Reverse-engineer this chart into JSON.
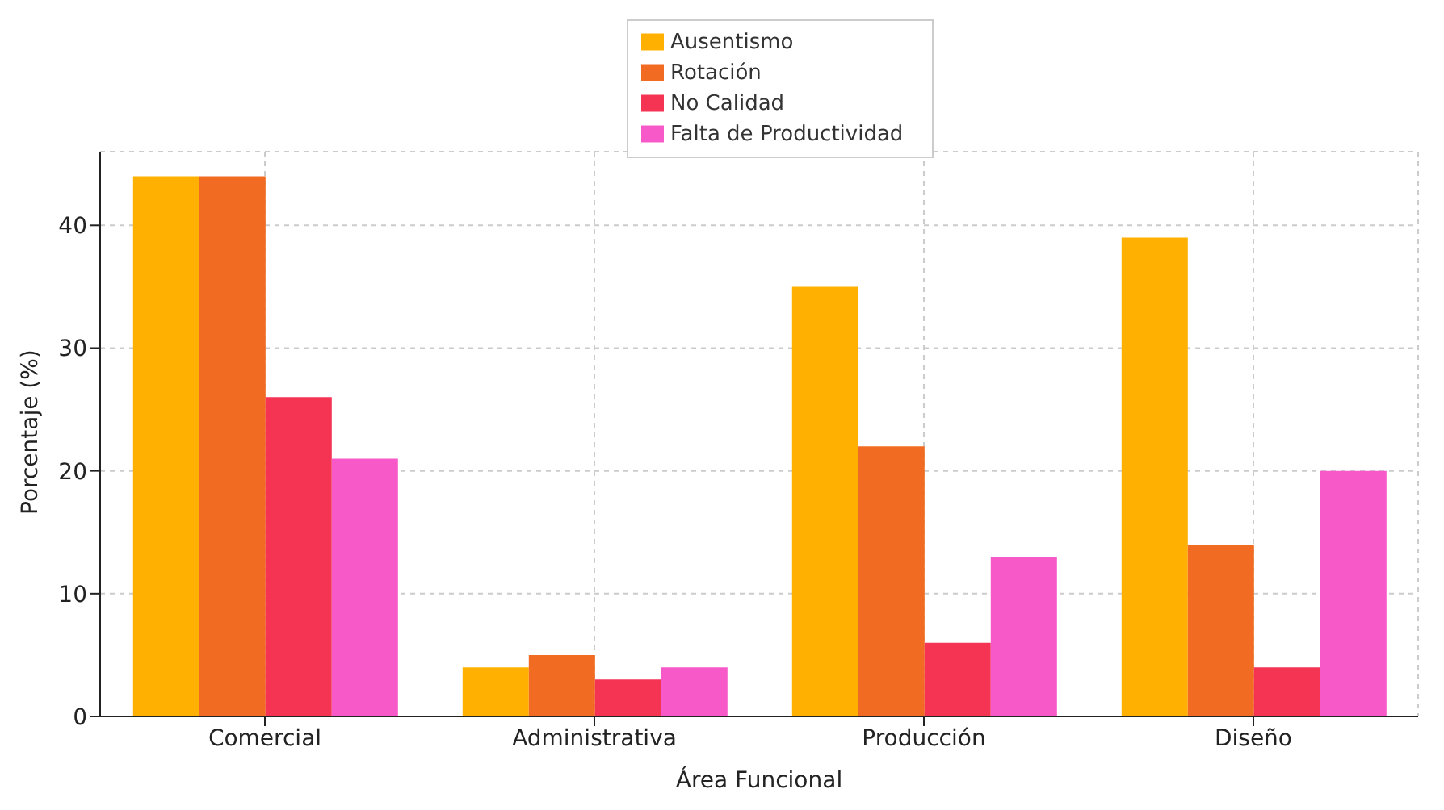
{
  "chart_data": {
    "type": "bar",
    "xlabel": "Área Funcional",
    "ylabel": "Porcentaje (%)",
    "categories": [
      "Comercial",
      "Administrativa",
      "Producción",
      "Diseño"
    ],
    "series": [
      {
        "name": "Ausentismo",
        "color": "#ffb000",
        "values": [
          44,
          4,
          35,
          39
        ]
      },
      {
        "name": "Rotación",
        "color": "#f26b22",
        "values": [
          44,
          5,
          22,
          14
        ]
      },
      {
        "name": "No Calidad",
        "color": "#f53353",
        "values": [
          26,
          3,
          6,
          4
        ]
      },
      {
        "name": "Falta de Productividad",
        "color": "#f75ac8",
        "values": [
          21,
          4,
          13,
          20
        ]
      }
    ],
    "ylim": [
      0,
      46
    ],
    "yticks": [
      0,
      10,
      20,
      30,
      40
    ],
    "grid": true,
    "legend": "top"
  }
}
